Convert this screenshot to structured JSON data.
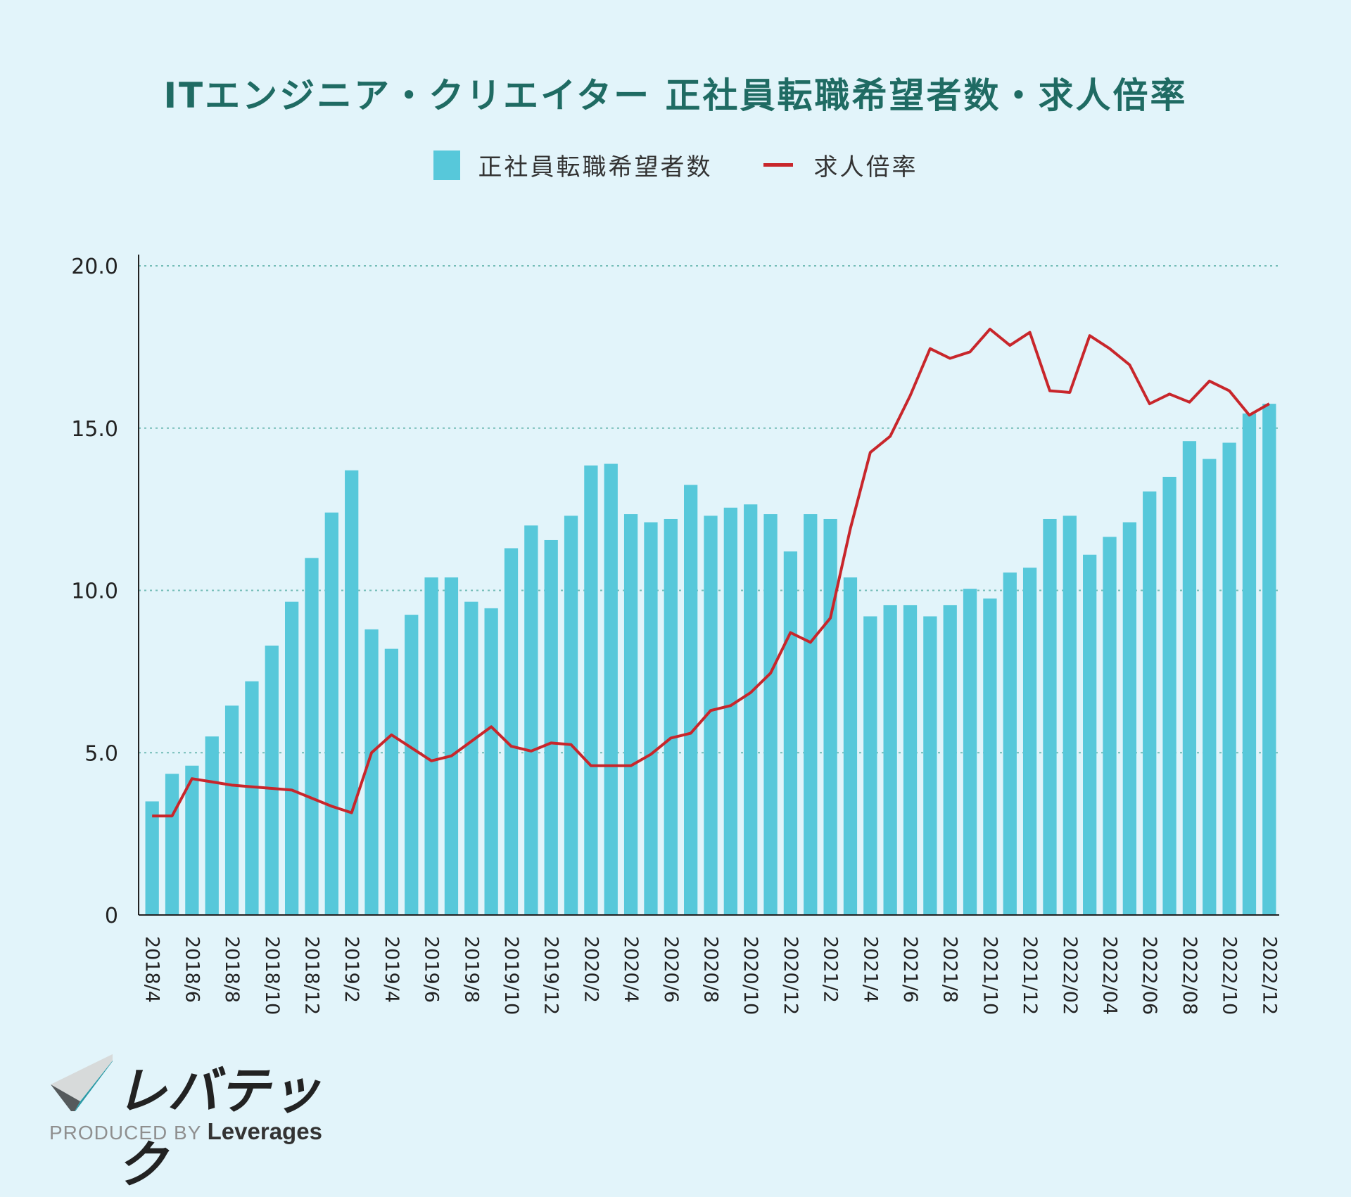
{
  "title": "ITエンジニア・クリエイター 正社員転職希望者数・求人倍率",
  "chart_data": {
    "type": "bar",
    "categories": [
      "2018/4",
      "2018/5",
      "2018/6",
      "2018/7",
      "2018/8",
      "2018/9",
      "2018/10",
      "2018/11",
      "2018/12",
      "2019/1",
      "2019/2",
      "2019/3",
      "2019/4",
      "2019/5",
      "2019/6",
      "2019/7",
      "2019/8",
      "2019/9",
      "2019/10",
      "2019/11",
      "2019/12",
      "2020/1",
      "2020/2",
      "2020/3",
      "2020/4",
      "2020/5",
      "2020/6",
      "2020/7",
      "2020/8",
      "2020/9",
      "2020/10",
      "2020/11",
      "2020/12",
      "2021/1",
      "2021/2",
      "2021/3",
      "2021/4",
      "2021/5",
      "2021/6",
      "2021/7",
      "2021/8",
      "2021/9",
      "2021/10",
      "2021/11",
      "2021/12",
      "2022/01",
      "2022/02",
      "2022/03",
      "2022/04",
      "2022/05",
      "2022/06",
      "2022/07",
      "2022/08",
      "2022/09",
      "2022/10",
      "2022/11",
      "2022/12"
    ],
    "tick_labels": [
      "2018/4",
      "2018/6",
      "2018/8",
      "2018/10",
      "2018/12",
      "2019/2",
      "2019/4",
      "2019/6",
      "2019/8",
      "2019/10",
      "2019/12",
      "2020/2",
      "2020/4",
      "2020/6",
      "2020/8",
      "2020/10",
      "2020/12",
      "2021/2",
      "2021/4",
      "2021/6",
      "2021/8",
      "2021/10",
      "2021/12",
      "2022/02",
      "2022/04",
      "2022/06",
      "2022/08",
      "2022/10",
      "2022/12"
    ],
    "series": [
      {
        "name": "正社員転職希望者数",
        "type": "bar",
        "color": "#57c8da",
        "values": [
          3.5,
          4.35,
          4.6,
          5.5,
          6.45,
          7.2,
          8.3,
          9.65,
          11.0,
          12.4,
          13.7,
          8.8,
          8.2,
          9.25,
          10.4,
          10.4,
          9.65,
          9.45,
          11.3,
          12.0,
          11.55,
          12.3,
          13.85,
          13.9,
          12.35,
          12.1,
          12.2,
          13.25,
          12.3,
          12.55,
          12.65,
          12.35,
          11.2,
          12.35,
          12.2,
          10.4,
          9.2,
          9.55,
          9.55,
          9.2,
          9.55,
          10.05,
          9.75,
          10.55,
          10.7,
          12.2,
          12.3,
          11.1,
          11.65,
          12.1,
          13.05,
          13.5,
          14.6,
          14.05,
          14.55,
          15.45,
          15.75
        ]
      },
      {
        "name": "求人倍率",
        "type": "line",
        "color": "#c8262b",
        "values": [
          3.05,
          3.05,
          4.2,
          4.1,
          4.0,
          3.95,
          3.9,
          3.85,
          3.6,
          3.35,
          3.15,
          5.0,
          5.55,
          5.15,
          4.75,
          4.9,
          5.35,
          5.8,
          5.2,
          5.05,
          5.3,
          5.25,
          4.6,
          4.6,
          4.6,
          4.95,
          5.45,
          5.6,
          6.3,
          6.45,
          6.85,
          7.45,
          8.7,
          8.4,
          9.15,
          11.9,
          14.25,
          14.75,
          16.0,
          17.45,
          17.15,
          17.35,
          18.05,
          17.55,
          17.95,
          16.15,
          16.1,
          17.85,
          17.45,
          16.95,
          15.75,
          16.05,
          15.8,
          16.45,
          16.15,
          15.4,
          15.75
        ]
      }
    ],
    "yticks": [
      "0",
      "5.0",
      "10.0",
      "15.0",
      "20.0"
    ],
    "ylim": [
      0,
      20
    ],
    "grid": true,
    "legend": "top-center"
  },
  "legend": {
    "bar_label": "正社員転職希望者数",
    "line_label": "求人倍率"
  },
  "logo": {
    "brand": "レバテック",
    "produced_by": "PRODUCED BY",
    "company": "Leverages"
  }
}
